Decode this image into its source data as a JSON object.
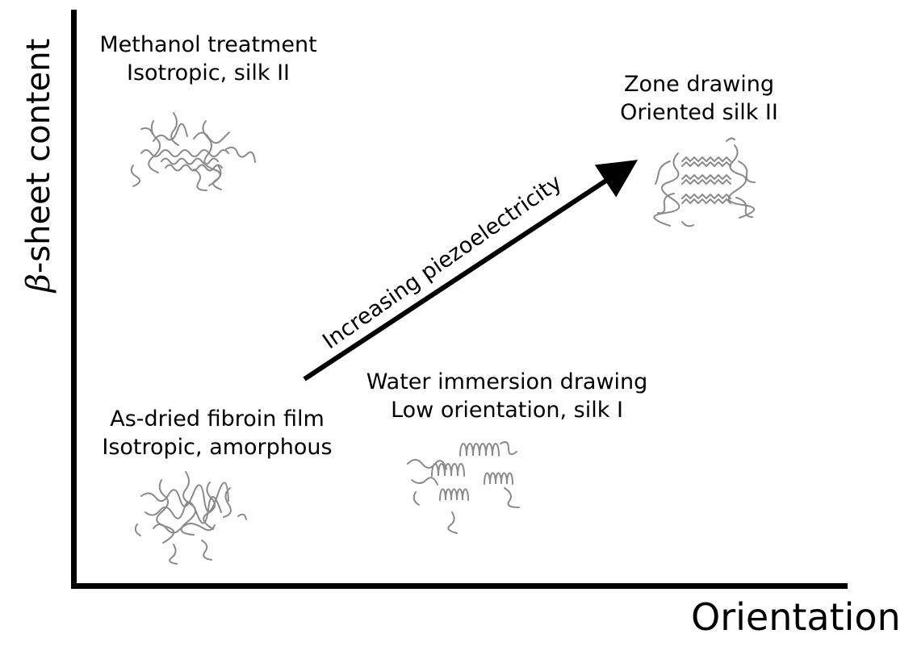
{
  "axes": {
    "y_symbol": "β",
    "y_label": "-sheet content",
    "x_label": "Orientation"
  },
  "arrow": {
    "label": "Increasing piezoelectricity"
  },
  "states": {
    "methanol": {
      "line1": "Methanol treatment",
      "line2": "Isotropic, silk II"
    },
    "zone": {
      "line1": "Zone drawing",
      "line2": "Oriented silk II"
    },
    "water": {
      "line1": "Water immersion drawing",
      "line2": "Low orientation, silk I"
    },
    "asdried": {
      "line1": "As-dried fibroin film",
      "line2": "Isotropic, amorphous"
    }
  },
  "colors": {
    "ink": "#000000",
    "molecule": "#7a7a7a"
  }
}
